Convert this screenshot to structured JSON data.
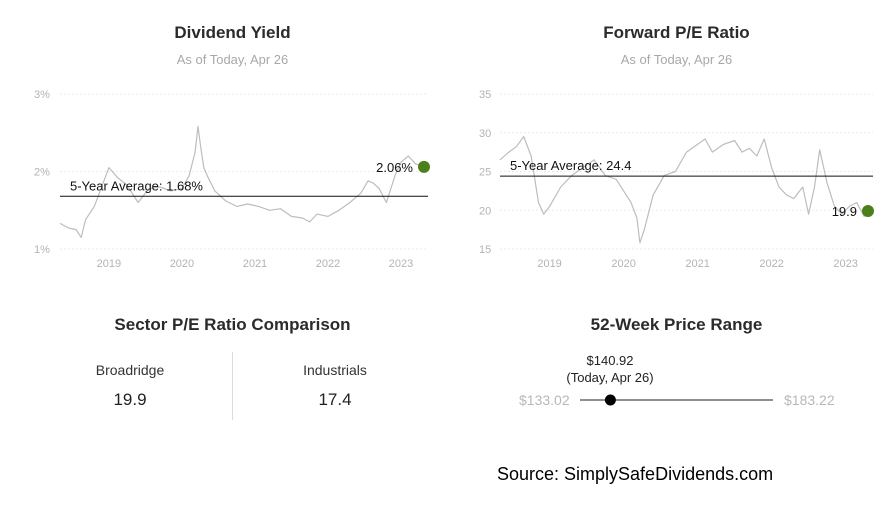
{
  "dividend_yield": {
    "title": "Dividend Yield",
    "subtitle": "As of Today, Apr 26",
    "average_label": "5-Year Average: 1.68%",
    "current_label": "2.06%",
    "marker_color": "#4a7f1a"
  },
  "forward_pe": {
    "title": "Forward P/E Ratio",
    "subtitle": "As of Today, Apr 26",
    "average_label": "5-Year Average: 24.4",
    "current_label": "19.9",
    "marker_color": "#4a7f1a"
  },
  "sector_comparison": {
    "title": "Sector P/E Ratio Comparison",
    "company_name": "Broadridge",
    "company_value": "19.9",
    "sector_name": "Industrials",
    "sector_value": "17.4"
  },
  "price_range": {
    "title": "52-Week Price Range",
    "low": "$133.02",
    "high": "$183.22",
    "current": "$140.92",
    "current_note": "(Today, Apr 26)",
    "current_value": 140.92,
    "low_value": 133.02,
    "high_value": 183.22
  },
  "source": "Source: SimplySafeDividends.com",
  "chart_data": [
    {
      "type": "line",
      "title": "Dividend Yield",
      "subtitle": "As of Today, Apr 26",
      "x_tick_labels": [
        "2019",
        "2020",
        "2021",
        "2022",
        "2023"
      ],
      "y_tick_labels": [
        "1%",
        "2%",
        "3%"
      ],
      "ylim": [
        1,
        3
      ],
      "xlim": [
        2018.33,
        2023.37
      ],
      "average": 1.68,
      "average_label": "5-Year Average: 1.68%",
      "current": {
        "x": 2023.32,
        "y": 2.06,
        "label": "2.06%"
      },
      "grid": true,
      "series": [
        {
          "x": [
            2018.33,
            2018.45,
            2018.55,
            2018.62,
            2018.68,
            2018.8,
            2018.92,
            2019.0,
            2019.12,
            2019.25,
            2019.4,
            2019.55,
            2019.7,
            2019.85,
            2020.0,
            2020.1,
            2020.18,
            2020.22,
            2020.26,
            2020.3,
            2020.36,
            2020.45,
            2020.6,
            2020.75,
            2020.9,
            2021.05,
            2021.2,
            2021.35,
            2021.5,
            2021.65,
            2021.75,
            2021.85,
            2022.0,
            2022.15,
            2022.3,
            2022.45,
            2022.55,
            2022.62,
            2022.7,
            2022.8,
            2022.92,
            2023.0,
            2023.1,
            2023.2,
            2023.32
          ],
          "y": [
            1.33,
            1.27,
            1.25,
            1.15,
            1.38,
            1.55,
            1.85,
            2.05,
            1.92,
            1.82,
            1.6,
            1.78,
            1.8,
            1.75,
            1.78,
            1.95,
            2.25,
            2.58,
            2.3,
            2.05,
            1.92,
            1.75,
            1.62,
            1.55,
            1.58,
            1.55,
            1.5,
            1.52,
            1.42,
            1.4,
            1.35,
            1.45,
            1.42,
            1.5,
            1.6,
            1.72,
            1.88,
            1.85,
            1.78,
            1.6,
            1.95,
            2.12,
            2.2,
            2.1,
            2.06
          ]
        }
      ]
    },
    {
      "type": "line",
      "title": "Forward P/E Ratio",
      "subtitle": "As of Today, Apr 26",
      "x_tick_labels": [
        "2019",
        "2020",
        "2021",
        "2022",
        "2023"
      ],
      "y_tick_labels": [
        "15",
        "20",
        "25",
        "30",
        "35"
      ],
      "ylim": [
        15,
        35
      ],
      "xlim": [
        2018.33,
        2023.37
      ],
      "average": 24.4,
      "average_label": "5-Year Average: 24.4",
      "current": {
        "x": 2023.32,
        "y": 19.9,
        "label": "19.9"
      },
      "grid": true,
      "series": [
        {
          "x": [
            2018.33,
            2018.45,
            2018.55,
            2018.65,
            2018.75,
            2018.85,
            2018.92,
            2019.0,
            2019.15,
            2019.3,
            2019.45,
            2019.6,
            2019.75,
            2019.9,
            2020.0,
            2020.1,
            2020.18,
            2020.22,
            2020.28,
            2020.4,
            2020.55,
            2020.7,
            2020.85,
            2021.0,
            2021.1,
            2021.2,
            2021.35,
            2021.5,
            2021.6,
            2021.7,
            2021.8,
            2021.9,
            2022.0,
            2022.1,
            2022.2,
            2022.3,
            2022.42,
            2022.5,
            2022.58,
            2022.65,
            2022.75,
            2022.85,
            2022.95,
            2023.05,
            2023.15,
            2023.25,
            2023.32
          ],
          "y": [
            26.5,
            27.5,
            28.2,
            29.5,
            27.0,
            21.0,
            19.5,
            20.5,
            23.0,
            24.5,
            25.5,
            26.5,
            24.5,
            24.0,
            22.5,
            21.0,
            19.0,
            15.8,
            17.5,
            22.0,
            24.5,
            25.0,
            27.5,
            28.5,
            29.2,
            27.5,
            28.5,
            29.0,
            27.5,
            28.0,
            27.0,
            29.2,
            25.5,
            23.0,
            22.0,
            21.5,
            23.0,
            19.5,
            23.0,
            27.8,
            23.5,
            20.5,
            19.5,
            20.5,
            21.0,
            19.2,
            19.9
          ]
        }
      ]
    }
  ]
}
